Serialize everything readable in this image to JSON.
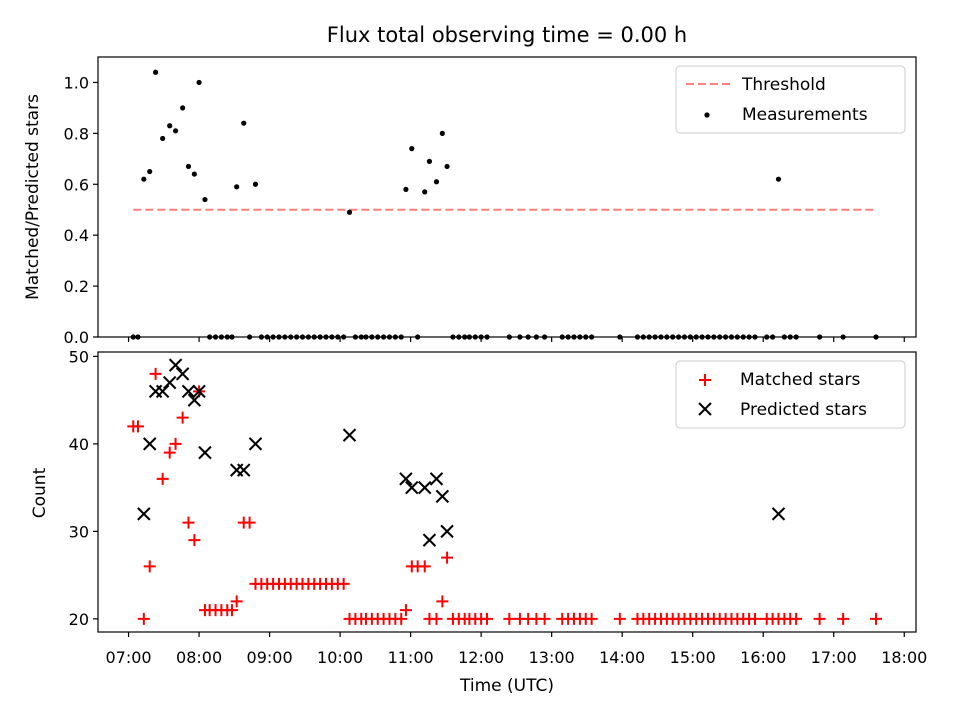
{
  "figure": {
    "title": "Flux total observing time = 0.00 h"
  },
  "chart_data": [
    {
      "type": "scatter",
      "ylabel": "Matched/Predicted stars",
      "xlabel": "",
      "ylim": [
        0,
        1.1
      ],
      "yticks": [
        0.0,
        0.2,
        0.4,
        0.6,
        0.8,
        1.0
      ],
      "ytick_labels": [
        "0.0",
        "0.2",
        "0.4",
        "0.6",
        "0.8",
        "1.0"
      ],
      "xlim": [
        "06:34",
        "18:10"
      ],
      "grid": false,
      "legend": {
        "placement": "top-right",
        "entries": [
          "Threshold",
          "Measurements"
        ]
      },
      "threshold": {
        "name": "Threshold",
        "value": 0.5,
        "x_start": "07:04",
        "x_end": "17:36",
        "color": "#ff7f7f",
        "style": "dashed"
      },
      "series": [
        {
          "name": "Measurements",
          "color": "#000000",
          "marker": "dot",
          "points": [
            [
              "07:04",
              0
            ],
            [
              "07:08",
              0
            ],
            [
              "07:13",
              0.62
            ],
            [
              "07:18",
              0.65
            ],
            [
              "07:23",
              1.04
            ],
            [
              "07:29",
              0.78
            ],
            [
              "07:35",
              0.83
            ],
            [
              "07:40",
              0.81
            ],
            [
              "07:46",
              0.9
            ],
            [
              "07:51",
              0.67
            ],
            [
              "07:56",
              0.64
            ],
            [
              "08:00",
              1.0
            ],
            [
              "08:05",
              0.54
            ],
            [
              "08:09",
              0
            ],
            [
              "08:14",
              0
            ],
            [
              "08:19",
              0
            ],
            [
              "08:24",
              0
            ],
            [
              "08:28",
              0
            ],
            [
              "08:32",
              0.59
            ],
            [
              "08:38",
              0.84
            ],
            [
              "08:43",
              0
            ],
            [
              "08:48",
              0.6
            ],
            [
              "08:53",
              0
            ],
            [
              "08:58",
              0
            ],
            [
              "09:03",
              0
            ],
            [
              "09:08",
              0
            ],
            [
              "09:13",
              0
            ],
            [
              "09:18",
              0
            ],
            [
              "09:23",
              0
            ],
            [
              "09:28",
              0
            ],
            [
              "09:33",
              0
            ],
            [
              "09:38",
              0
            ],
            [
              "09:43",
              0
            ],
            [
              "09:48",
              0
            ],
            [
              "09:53",
              0
            ],
            [
              "09:58",
              0
            ],
            [
              "10:03",
              0
            ],
            [
              "10:08",
              0.49
            ],
            [
              "10:13",
              0
            ],
            [
              "10:18",
              0
            ],
            [
              "10:22",
              0
            ],
            [
              "10:27",
              0
            ],
            [
              "10:32",
              0
            ],
            [
              "10:37",
              0
            ],
            [
              "10:42",
              0
            ],
            [
              "10:47",
              0
            ],
            [
              "10:52",
              0
            ],
            [
              "10:56",
              0.58
            ],
            [
              "11:01",
              0.74
            ],
            [
              "11:06",
              0
            ],
            [
              "11:12",
              0.57
            ],
            [
              "11:16",
              0.69
            ],
            [
              "11:22",
              0.61
            ],
            [
              "11:27",
              0.8
            ],
            [
              "11:31",
              0.67
            ],
            [
              "11:36",
              0
            ],
            [
              "11:41",
              0
            ],
            [
              "11:46",
              0
            ],
            [
              "11:50",
              0
            ],
            [
              "11:55",
              0
            ],
            [
              "12:00",
              0
            ],
            [
              "12:05",
              0
            ],
            [
              "12:24",
              0
            ],
            [
              "12:33",
              0
            ],
            [
              "12:40",
              0
            ],
            [
              "12:47",
              0
            ],
            [
              "12:54",
              0
            ],
            [
              "13:09",
              0
            ],
            [
              "13:14",
              0
            ],
            [
              "13:19",
              0
            ],
            [
              "13:24",
              0
            ],
            [
              "13:29",
              0
            ],
            [
              "13:34",
              0
            ],
            [
              "13:58",
              0
            ],
            [
              "14:13",
              0
            ],
            [
              "14:18",
              0
            ],
            [
              "14:23",
              0
            ],
            [
              "14:28",
              0
            ],
            [
              "14:33",
              0
            ],
            [
              "14:38",
              0
            ],
            [
              "14:43",
              0
            ],
            [
              "14:48",
              0
            ],
            [
              "14:53",
              0
            ],
            [
              "14:58",
              0
            ],
            [
              "15:03",
              0
            ],
            [
              "15:08",
              0
            ],
            [
              "15:13",
              0
            ],
            [
              "15:18",
              0
            ],
            [
              "15:23",
              0
            ],
            [
              "15:28",
              0
            ],
            [
              "15:33",
              0
            ],
            [
              "15:38",
              0
            ],
            [
              "15:43",
              0
            ],
            [
              "15:48",
              0
            ],
            [
              "15:53",
              0
            ],
            [
              "16:03",
              0
            ],
            [
              "16:08",
              0
            ],
            [
              "16:13",
              0.62
            ],
            [
              "16:18",
              0
            ],
            [
              "16:23",
              0
            ],
            [
              "16:28",
              0
            ],
            [
              "16:48",
              0
            ],
            [
              "17:08",
              0
            ],
            [
              "17:36",
              0
            ]
          ]
        }
      ]
    },
    {
      "type": "scatter",
      "ylabel": "Count",
      "xlabel": "Time (UTC)",
      "ylim": [
        18.5,
        50.5
      ],
      "yticks": [
        20,
        30,
        40,
        50
      ],
      "ytick_labels": [
        "20",
        "30",
        "40",
        "50"
      ],
      "xlim": [
        "06:34",
        "18:10"
      ],
      "xticks": [
        "07:00",
        "08:00",
        "09:00",
        "10:00",
        "11:00",
        "12:00",
        "13:00",
        "14:00",
        "15:00",
        "16:00",
        "17:00",
        "18:00"
      ],
      "grid": false,
      "legend": {
        "placement": "top-right",
        "entries": [
          "Matched stars",
          "Predicted stars"
        ]
      },
      "series": [
        {
          "name": "Matched stars",
          "color": "#ff0000",
          "marker": "plus",
          "points": [
            [
              "07:04",
              42
            ],
            [
              "07:08",
              42
            ],
            [
              "07:13",
              20
            ],
            [
              "07:18",
              26
            ],
            [
              "07:23",
              48
            ],
            [
              "07:29",
              36
            ],
            [
              "07:35",
              39
            ],
            [
              "07:40",
              40
            ],
            [
              "07:46",
              43
            ],
            [
              "07:51",
              31
            ],
            [
              "07:56",
              29
            ],
            [
              "08:00",
              46
            ],
            [
              "08:05",
              21
            ],
            [
              "08:09",
              21
            ],
            [
              "08:14",
              21
            ],
            [
              "08:19",
              21
            ],
            [
              "08:24",
              21
            ],
            [
              "08:28",
              21
            ],
            [
              "08:32",
              22
            ],
            [
              "08:38",
              31
            ],
            [
              "08:43",
              31
            ],
            [
              "08:48",
              24
            ],
            [
              "08:53",
              24
            ],
            [
              "08:58",
              24
            ],
            [
              "09:03",
              24
            ],
            [
              "09:08",
              24
            ],
            [
              "09:13",
              24
            ],
            [
              "09:18",
              24
            ],
            [
              "09:23",
              24
            ],
            [
              "09:28",
              24
            ],
            [
              "09:33",
              24
            ],
            [
              "09:38",
              24
            ],
            [
              "09:43",
              24
            ],
            [
              "09:48",
              24
            ],
            [
              "09:53",
              24
            ],
            [
              "09:58",
              24
            ],
            [
              "10:03",
              24
            ],
            [
              "10:08",
              20
            ],
            [
              "10:13",
              20
            ],
            [
              "10:18",
              20
            ],
            [
              "10:22",
              20
            ],
            [
              "10:27",
              20
            ],
            [
              "10:32",
              20
            ],
            [
              "10:37",
              20
            ],
            [
              "10:42",
              20
            ],
            [
              "10:47",
              20
            ],
            [
              "10:52",
              20
            ],
            [
              "10:56",
              21
            ],
            [
              "11:01",
              26
            ],
            [
              "11:06",
              26
            ],
            [
              "11:12",
              26
            ],
            [
              "11:16",
              20
            ],
            [
              "11:22",
              20
            ],
            [
              "11:27",
              22
            ],
            [
              "11:31",
              27
            ],
            [
              "11:36",
              20
            ],
            [
              "11:41",
              20
            ],
            [
              "11:46",
              20
            ],
            [
              "11:50",
              20
            ],
            [
              "11:55",
              20
            ],
            [
              "12:00",
              20
            ],
            [
              "12:05",
              20
            ],
            [
              "12:24",
              20
            ],
            [
              "12:33",
              20
            ],
            [
              "12:40",
              20
            ],
            [
              "12:47",
              20
            ],
            [
              "12:54",
              20
            ],
            [
              "13:09",
              20
            ],
            [
              "13:14",
              20
            ],
            [
              "13:19",
              20
            ],
            [
              "13:24",
              20
            ],
            [
              "13:29",
              20
            ],
            [
              "13:34",
              20
            ],
            [
              "13:58",
              20
            ],
            [
              "14:13",
              20
            ],
            [
              "14:18",
              20
            ],
            [
              "14:23",
              20
            ],
            [
              "14:28",
              20
            ],
            [
              "14:33",
              20
            ],
            [
              "14:38",
              20
            ],
            [
              "14:43",
              20
            ],
            [
              "14:48",
              20
            ],
            [
              "14:53",
              20
            ],
            [
              "14:58",
              20
            ],
            [
              "15:03",
              20
            ],
            [
              "15:08",
              20
            ],
            [
              "15:13",
              20
            ],
            [
              "15:18",
              20
            ],
            [
              "15:23",
              20
            ],
            [
              "15:28",
              20
            ],
            [
              "15:33",
              20
            ],
            [
              "15:38",
              20
            ],
            [
              "15:43",
              20
            ],
            [
              "15:48",
              20
            ],
            [
              "15:53",
              20
            ],
            [
              "16:03",
              20
            ],
            [
              "16:08",
              20
            ],
            [
              "16:13",
              20
            ],
            [
              "16:18",
              20
            ],
            [
              "16:23",
              20
            ],
            [
              "16:28",
              20
            ],
            [
              "16:48",
              20
            ],
            [
              "17:08",
              20
            ],
            [
              "17:36",
              20
            ]
          ]
        },
        {
          "name": "Predicted stars",
          "color": "#000000",
          "marker": "x",
          "points": [
            [
              "07:13",
              32
            ],
            [
              "07:18",
              40
            ],
            [
              "07:23",
              46
            ],
            [
              "07:29",
              46
            ],
            [
              "07:35",
              47
            ],
            [
              "07:40",
              49
            ],
            [
              "07:46",
              48
            ],
            [
              "07:51",
              46
            ],
            [
              "07:56",
              45
            ],
            [
              "08:00",
              46
            ],
            [
              "08:05",
              39
            ],
            [
              "08:32",
              37
            ],
            [
              "08:38",
              37
            ],
            [
              "08:48",
              40
            ],
            [
              "10:08",
              41
            ],
            [
              "10:56",
              36
            ],
            [
              "11:01",
              35
            ],
            [
              "11:12",
              35
            ],
            [
              "11:16",
              29
            ],
            [
              "11:22",
              36
            ],
            [
              "11:27",
              34
            ],
            [
              "11:31",
              30
            ],
            [
              "16:13",
              32
            ]
          ]
        }
      ]
    }
  ]
}
